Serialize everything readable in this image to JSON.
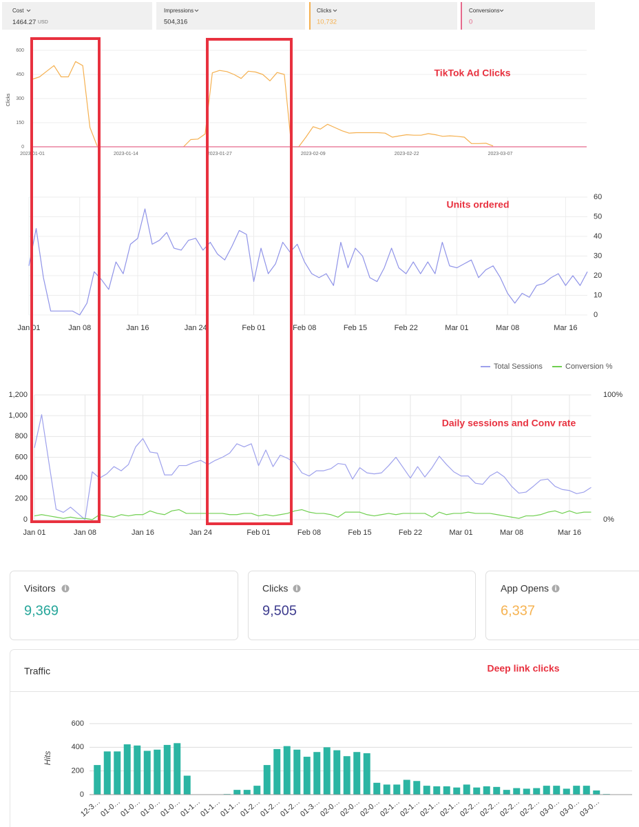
{
  "metrics": [
    {
      "label": "Cost",
      "value": "1464.27",
      "unit": "USD",
      "color": "#333333"
    },
    {
      "label": "Impressions",
      "value": "504,316",
      "color": "#333333"
    },
    {
      "label": "Clicks",
      "value": "10,732",
      "color": "#f5b04f"
    },
    {
      "label": "Conversions",
      "value": "0",
      "color": "#e5688b"
    }
  ],
  "chart_data": [
    {
      "type": "line",
      "annotation": "TikTok Ad Clicks",
      "y_label": "Clicks",
      "categories": [
        "2023-01-01",
        null,
        null,
        null,
        null,
        null,
        null,
        null,
        null,
        null,
        null,
        null,
        null,
        "2023-01-14",
        null,
        null,
        null,
        null,
        null,
        null,
        null,
        null,
        null,
        null,
        null,
        null,
        "2023-01-27",
        null,
        null,
        null,
        null,
        null,
        null,
        null,
        null,
        null,
        null,
        null,
        null,
        "2023-02-09",
        null,
        null,
        null,
        null,
        null,
        null,
        null,
        null,
        null,
        null,
        null,
        null,
        "2023-02-22",
        null,
        null,
        null,
        null,
        null,
        null,
        null,
        null,
        null,
        null,
        null,
        null,
        "2023-03-07",
        null,
        null,
        null,
        null,
        null,
        null,
        null,
        null,
        null,
        null,
        null,
        null
      ],
      "series": [
        {
          "color": "#f5b04f",
          "values": [
            420,
            435,
            470,
            505,
            435,
            435,
            530,
            505,
            120,
            5,
            null,
            null,
            null,
            null,
            null,
            null,
            null,
            null,
            null,
            null,
            null,
            0,
            45,
            48,
            80,
            460,
            475,
            468,
            450,
            425,
            470,
            465,
            450,
            410,
            462,
            450,
            0,
            0,
            60,
            125,
            110,
            140,
            120,
            100,
            85,
            88,
            88,
            88,
            88,
            85,
            60,
            68,
            75,
            72,
            72,
            82,
            75,
            65,
            68,
            65,
            60,
            20,
            20,
            22,
            5,
            null,
            null,
            null,
            null,
            null,
            null,
            null,
            null,
            null,
            null,
            null,
            null,
            null
          ]
        },
        {
          "color": "#e5688b",
          "values": [
            0,
            0,
            0,
            0,
            0,
            0,
            0,
            0,
            0,
            0,
            0,
            0,
            0,
            0,
            0,
            0,
            0,
            0,
            0,
            0,
            0,
            0,
            0,
            0,
            0,
            0,
            0,
            0,
            0,
            0,
            0,
            0,
            0,
            0,
            0,
            0,
            0,
            0,
            0,
            0,
            0,
            0,
            0,
            0,
            0,
            0,
            0,
            0,
            0,
            0,
            0,
            0,
            0,
            0,
            0,
            0,
            0,
            0,
            0,
            0,
            0,
            0,
            0,
            0,
            0,
            0,
            0,
            0,
            0,
            0,
            0,
            0,
            0,
            0,
            0,
            0,
            0,
            0
          ]
        }
      ],
      "ylim": [
        0,
        600
      ],
      "yticks": [
        0,
        150,
        300,
        450,
        600
      ],
      "grid": true
    },
    {
      "type": "line",
      "annotation": "Units ordered",
      "categories": [
        "Jan 01",
        null,
        null,
        null,
        null,
        null,
        null,
        "Jan 08",
        null,
        null,
        null,
        null,
        null,
        null,
        null,
        "Jan 16",
        null,
        null,
        null,
        null,
        null,
        null,
        null,
        "Jan 24",
        null,
        null,
        null,
        null,
        null,
        null,
        null,
        "Feb 01",
        null,
        null,
        null,
        null,
        null,
        null,
        "Feb 08",
        null,
        null,
        null,
        null,
        null,
        null,
        "Feb 15",
        null,
        null,
        null,
        null,
        null,
        null,
        "Feb 22",
        null,
        null,
        null,
        null,
        null,
        null,
        "Mar 01",
        null,
        null,
        null,
        null,
        null,
        null,
        "Mar 08",
        null,
        null,
        null,
        null,
        null,
        null,
        null,
        "Mar 16",
        null,
        null,
        null
      ],
      "series": [
        {
          "color": "#8f93e8",
          "values": [
            25,
            44,
            19,
            2,
            2,
            2,
            2,
            0,
            6,
            22,
            18,
            13,
            27,
            21,
            36,
            39,
            54,
            36,
            38,
            42,
            34,
            33,
            38,
            39,
            33,
            37,
            31,
            28,
            35,
            43,
            41,
            17,
            34,
            21,
            26,
            37,
            32,
            36,
            27,
            21,
            19,
            21,
            15,
            37,
            24,
            34,
            30,
            19,
            17,
            24,
            34,
            24,
            21,
            27,
            21,
            27,
            21,
            37,
            25,
            24,
            26,
            28,
            19,
            23,
            25,
            19,
            11,
            6,
            11,
            9,
            15,
            16,
            19,
            21,
            15,
            20,
            15,
            22
          ]
        }
      ],
      "ylim": [
        0,
        60
      ],
      "yticks": [
        0,
        10,
        20,
        30,
        40,
        50,
        60
      ],
      "y_axis_side": "right",
      "grid": true
    },
    {
      "type": "line",
      "annotation": "Daily sessions and Conv rate",
      "categories": [
        "Jan 01",
        null,
        null,
        null,
        null,
        null,
        null,
        "Jan 08",
        null,
        null,
        null,
        null,
        null,
        null,
        null,
        "Jan 16",
        null,
        null,
        null,
        null,
        null,
        null,
        null,
        "Jan 24",
        null,
        null,
        null,
        null,
        null,
        null,
        null,
        "Feb 01",
        null,
        null,
        null,
        null,
        null,
        null,
        "Feb 08",
        null,
        null,
        null,
        null,
        null,
        null,
        "Feb 15",
        null,
        null,
        null,
        null,
        null,
        null,
        "Feb 22",
        null,
        null,
        null,
        null,
        null,
        null,
        "Mar 01",
        null,
        null,
        null,
        null,
        null,
        null,
        "Mar 08",
        null,
        null,
        null,
        null,
        null,
        null,
        null,
        "Mar 16",
        null,
        null,
        null
      ],
      "series": [
        {
          "name": "Total Sessions",
          "color": "#9da0ec",
          "values": [
            690,
            1010,
            550,
            100,
            70,
            120,
            60,
            0,
            460,
            400,
            440,
            510,
            470,
            530,
            700,
            780,
            650,
            640,
            430,
            430,
            520,
            520,
            550,
            570,
            530,
            570,
            600,
            640,
            730,
            700,
            730,
            520,
            670,
            510,
            620,
            590,
            550,
            450,
            420,
            470,
            470,
            490,
            540,
            530,
            390,
            500,
            450,
            440,
            450,
            520,
            600,
            500,
            400,
            510,
            410,
            500,
            610,
            530,
            460,
            420,
            420,
            350,
            340,
            420,
            460,
            410,
            320,
            255,
            265,
            320,
            380,
            390,
            320,
            290,
            280,
            250,
            265,
            310
          ]
        },
        {
          "name": "Conversion %",
          "color": "#6fcf4f",
          "axis": "y2",
          "values": [
            3,
            4,
            3,
            2,
            1,
            2,
            1,
            1,
            0,
            4,
            3,
            2,
            4,
            3,
            4,
            4,
            7,
            5,
            4,
            7,
            8,
            5,
            5,
            5,
            5,
            5,
            5,
            4,
            4,
            5,
            5,
            3,
            4,
            3,
            4,
            5,
            7,
            8,
            6,
            5,
            5,
            4,
            2,
            6,
            6,
            6,
            4,
            3,
            4,
            5,
            4,
            5,
            5,
            5,
            5,
            2,
            6,
            4,
            5,
            5,
            6,
            5,
            5,
            5,
            4,
            3,
            2,
            1,
            3,
            3,
            4,
            6,
            7,
            5,
            7,
            5,
            6,
            6
          ]
        }
      ],
      "ylim": [
        0,
        1200
      ],
      "yticks": [
        0,
        200,
        400,
        600,
        800,
        {
          "value": 1000,
          "label": "1,000"
        },
        {
          "value": 1200,
          "label": "1,200"
        }
      ],
      "y2lim": [
        0,
        100
      ],
      "y2ticks": [
        {
          "value": 0,
          "label": "0%"
        },
        {
          "value": 100,
          "label": "100%"
        }
      ],
      "legend": "top-right",
      "grid": true
    },
    {
      "type": "bar",
      "title": "Traffic",
      "annotation": "Deep link clicks",
      "y_label": "Hits",
      "categories": [
        "12-3…",
        null,
        "01-0…",
        null,
        "01-0…",
        null,
        "01-0…",
        null,
        "01-0…",
        null,
        "01-1…",
        null,
        "01-1…",
        null,
        "01-1…",
        null,
        "01-2…",
        null,
        "01-2…",
        null,
        "01-2…",
        null,
        "01-3…",
        null,
        "02-0…",
        null,
        "02-0…",
        null,
        "02-0…",
        null,
        "02-1…",
        null,
        "02-1…",
        null,
        "02-1…",
        null,
        "02-1…",
        null,
        "02-2…",
        null,
        "02-2…",
        null,
        "02-2…",
        null,
        "02-2…",
        null,
        "03-0…",
        null,
        "03-0…",
        null,
        "03-0…",
        null
      ],
      "values": [
        250,
        365,
        365,
        425,
        415,
        370,
        380,
        420,
        435,
        160,
        0,
        0,
        0,
        5,
        40,
        40,
        75,
        250,
        385,
        410,
        380,
        320,
        360,
        400,
        375,
        325,
        360,
        350,
        100,
        85,
        85,
        125,
        115,
        75,
        70,
        70,
        60,
        85,
        60,
        70,
        65,
        40,
        55,
        50,
        55,
        75,
        75,
        50,
        75,
        75,
        35,
        5
      ],
      "color": "#2bb5a3",
      "ylim": [
        0,
        600
      ],
      "yticks": [
        0,
        200,
        400,
        600
      ],
      "grid": true
    }
  ],
  "stat_cards": [
    {
      "label": "Visitors",
      "value": "9,369",
      "color": "#26a69a"
    },
    {
      "label": "Clicks",
      "value": "9,505",
      "color": "#3f3d8f"
    },
    {
      "label": "App Opens",
      "value": "6,337",
      "color": "#f6b352"
    }
  ]
}
